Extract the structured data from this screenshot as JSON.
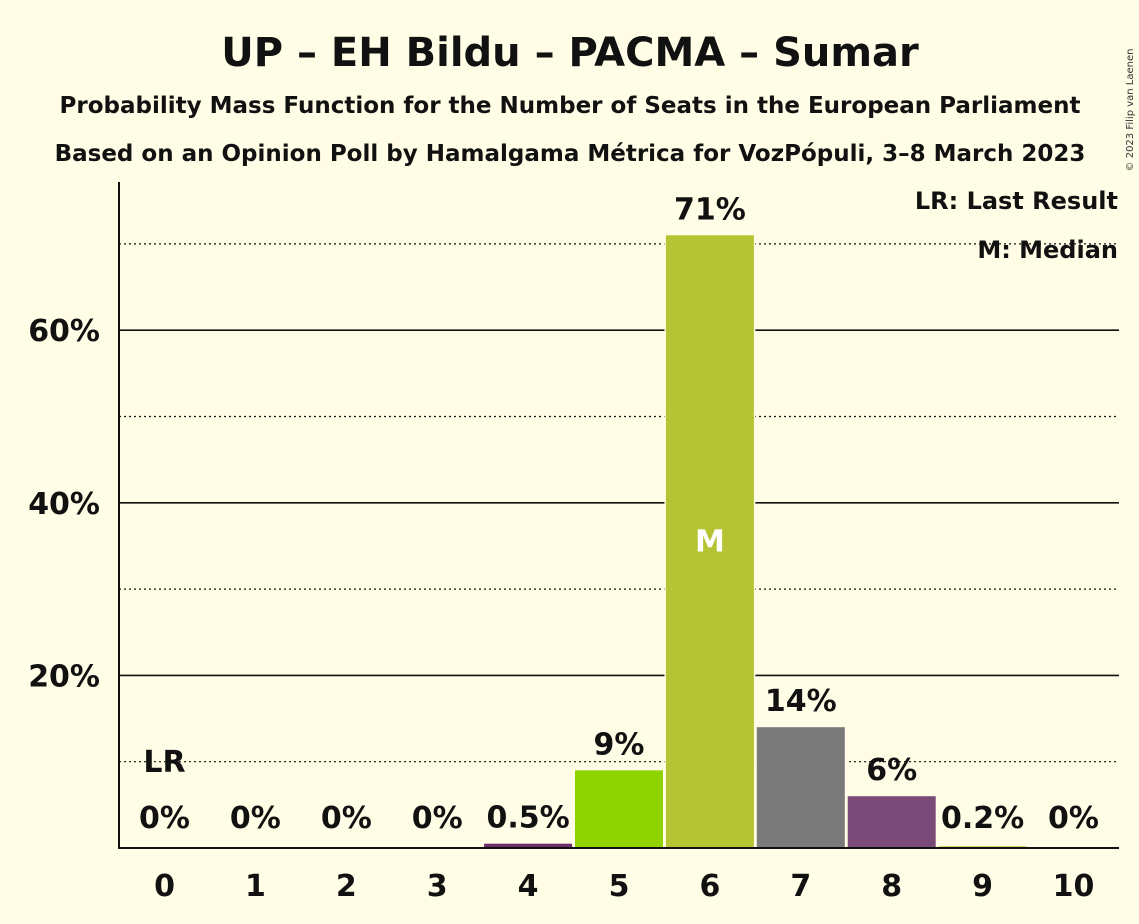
{
  "chart_data": {
    "type": "bar",
    "title": "UP – EH Bildu – PACMA – Sumar",
    "subtitle_line1": "Probability Mass Function for the Number of Seats in the European Parliament",
    "subtitle_line2": "Based on an Opinion Poll by Hamalgama Métrica for VozPópuli, 3–8 March 2023",
    "copyright": "© 2023 Filip van Laenen",
    "categories": [
      "0",
      "1",
      "2",
      "3",
      "4",
      "5",
      "6",
      "7",
      "8",
      "9",
      "10"
    ],
    "values": [
      0,
      0,
      0,
      0,
      0.5,
      9,
      71,
      14,
      6,
      0.2,
      0
    ],
    "data_labels": [
      "0%",
      "0%",
      "0%",
      "0%",
      "0.5%",
      "9%",
      "71%",
      "14%",
      "6%",
      "0.2%",
      "0%"
    ],
    "bar_colors": [
      "#B5C432",
      "#B5C432",
      "#B5C432",
      "#B5C432",
      "#6A2E6B",
      "#8FD400",
      "#B5C432",
      "#7A7A7A",
      "#7A4A78",
      "#B5C432",
      "#B5C432"
    ],
    "yticks": [
      20,
      40,
      60
    ],
    "ytick_labels": [
      "20%",
      "40%",
      "60%"
    ],
    "ylim": [
      0,
      77
    ],
    "grid_solid": [
      20,
      40,
      60
    ],
    "grid_dotted": [
      10,
      30,
      50,
      70
    ],
    "last_result_index": 0,
    "last_result_mark": "LR",
    "median_index": 6,
    "median_mark": "M",
    "legend": {
      "position": "top-right",
      "last_result": "LR: Last Result",
      "median": "M: Median"
    }
  }
}
